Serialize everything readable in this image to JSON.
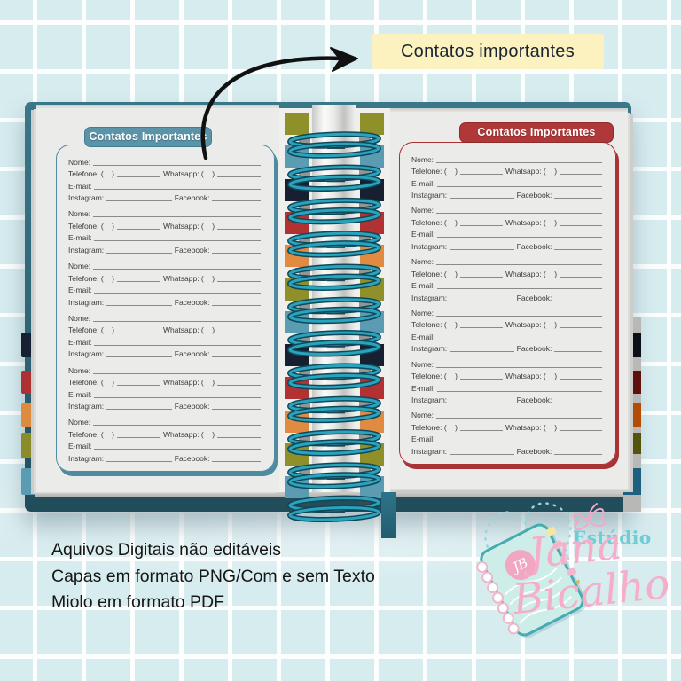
{
  "background": {
    "base_color": "#d7ecef",
    "grid_line_color": "#ffffff"
  },
  "callout": {
    "label": "Contatos importantes",
    "bg": "#fbf2c0",
    "text_color": "#1b2531",
    "arrow_icon": "curved-arrow-right",
    "arrow_color": "#111111"
  },
  "notebook": {
    "cover_color": "#2e6375",
    "page_color": "#ebebe9",
    "left_page": {
      "header": "Contatos Importantes",
      "accent": "#4e8aa0",
      "header_bg": "#5b93a8",
      "header_border": "#447c91"
    },
    "right_page": {
      "header": "Contatos Importantes",
      "accent": "#a93334",
      "header_bg": "#b03838",
      "header_border": "#8e2b2b"
    },
    "contact_fields": {
      "nome": "Nome:",
      "telefone": "Telefone: (    )",
      "whatsapp": "Whatsapp: (    )",
      "email": "E-mail:",
      "instagram": "Instagram:",
      "facebook": "Facebook:"
    },
    "blocks_per_page": 6,
    "spine": {
      "coil_color": "#2aa3bd",
      "coil_dark": "#0f4859",
      "coil_count": 12,
      "block_colors": [
        "#8f9029",
        "#5b9cb3",
        "#162030",
        "#b23132",
        "#e08b41",
        "#8f9029",
        "#5b9cb3",
        "#162030",
        "#b23132",
        "#e08b41",
        "#8f9029",
        "#5b9cb3"
      ]
    },
    "left_tab_colors": [
      "#162030",
      "#ad3132",
      "#df8a41",
      "#8b8d2b",
      "#5b9cb3"
    ],
    "right_tab_colors": [
      "#0c1016",
      "#5e100f",
      "#b24d08",
      "#53550f",
      "#1d617f"
    ],
    "ribbon_color": "#2d7489"
  },
  "footer": {
    "lines": [
      "Aquivos Digitais não editáveis",
      "Capas em formato PNG/Com e sem Texto",
      "Miolo em formato PDF"
    ]
  },
  "logo": {
    "studio": "Estúdio",
    "name_line1": "Jana",
    "name_line2": "Bicalho",
    "monogram": "JB",
    "studio_color": "#6fcdd5",
    "name_color": "#f5aec9",
    "heart_color": "#93d8dc",
    "butterfly_color": "#f0aac6",
    "book_fill": "#cdeee8",
    "book_border": "#47acb1",
    "monogram_bg": "#f1a6c2",
    "tab_colors": [
      "#f6e6a0",
      "#f2b9cd",
      "#cfd3d6",
      "#f2b9cd"
    ],
    "heart_icon": "dotted-heart",
    "butterfly_icon": "butterfly-outline",
    "gold_heart_icon": "♥"
  }
}
